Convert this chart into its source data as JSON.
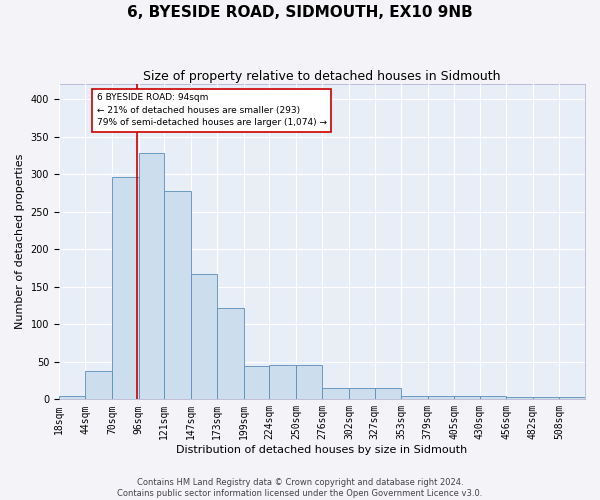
{
  "title": "6, BYESIDE ROAD, SIDMOUTH, EX10 9NB",
  "subtitle": "Size of property relative to detached houses in Sidmouth",
  "xlabel": "Distribution of detached houses by size in Sidmouth",
  "ylabel": "Number of detached properties",
  "bar_color": "#ccdded",
  "bar_edge_color": "#5b8db8",
  "background_color": "#e8eef8",
  "grid_color": "#ffffff",
  "vline_x": 94,
  "vline_color": "#cc0000",
  "annotation_text": "6 BYESIDE ROAD: 94sqm\n← 21% of detached houses are smaller (293)\n79% of semi-detached houses are larger (1,074) →",
  "annotation_box_color": "#ffffff",
  "annotation_box_edge": "#cc0000",
  "bins": [
    18,
    44,
    70,
    96,
    121,
    147,
    173,
    199,
    224,
    250,
    276,
    302,
    327,
    353,
    379,
    405,
    430,
    456,
    482,
    508,
    533
  ],
  "counts": [
    4,
    38,
    296,
    328,
    278,
    167,
    122,
    44,
    46,
    46,
    15,
    15,
    15,
    5,
    5,
    5,
    5,
    3,
    3,
    3
  ],
  "ylim": [
    0,
    420
  ],
  "yticks": [
    0,
    50,
    100,
    150,
    200,
    250,
    300,
    350,
    400
  ],
  "footnote": "Contains HM Land Registry data © Crown copyright and database right 2024.\nContains public sector information licensed under the Open Government Licence v3.0.",
  "title_fontsize": 11,
  "subtitle_fontsize": 9,
  "label_fontsize": 8,
  "tick_fontsize": 7,
  "footnote_fontsize": 6,
  "fig_width": 6.0,
  "fig_height": 5.0,
  "fig_dpi": 100
}
